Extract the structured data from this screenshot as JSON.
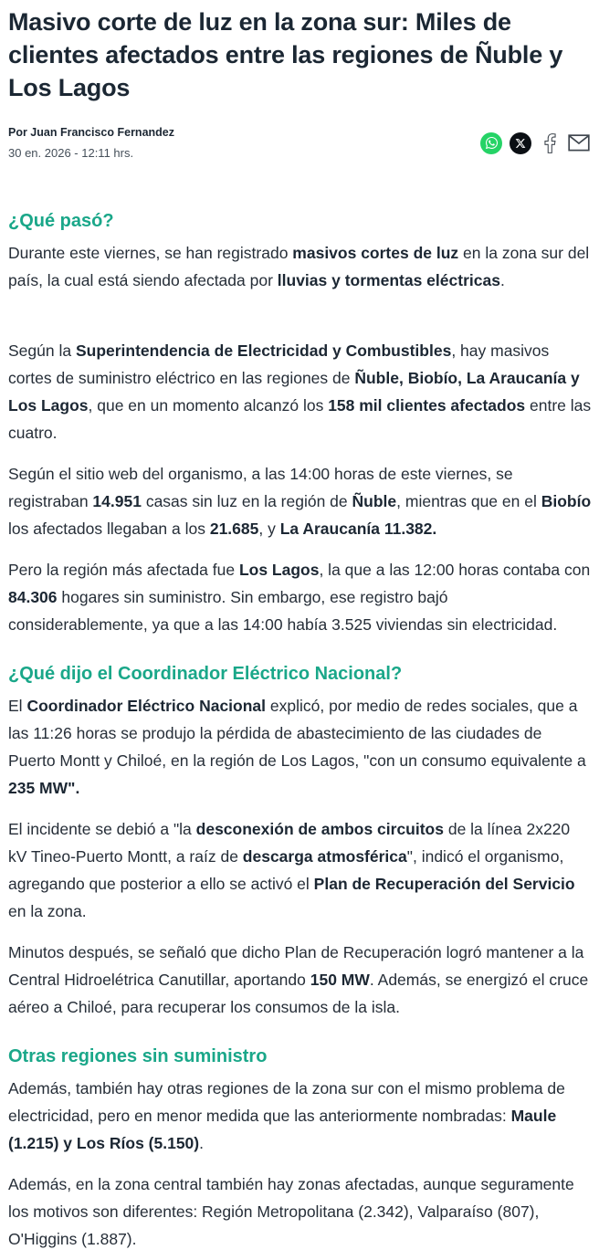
{
  "colors": {
    "accent": "#1aa789",
    "headline": "#1b2733",
    "body_text": "#262e38",
    "whatsapp_green": "#25D366",
    "x_black": "#0b0f14",
    "icon_outline": "#3f464e"
  },
  "article": {
    "title": "Masivo corte de luz en la zona sur: Miles de clientes afectados entre las regiones de Ñuble y Los Lagos",
    "byline": {
      "author": "Por Juan Francisco Fernandez",
      "date": "30 en. 2026 - 12:11 hrs."
    },
    "share": [
      {
        "id": "whatsapp",
        "icon": "whatsapp-icon"
      },
      {
        "id": "x",
        "icon": "x-icon"
      },
      {
        "id": "facebook",
        "icon": "facebook-icon"
      },
      {
        "id": "email",
        "icon": "email-icon"
      }
    ],
    "sections": [
      {
        "heading": "¿Qué pasó?",
        "paragraphs": [
          {
            "spacer_after": true,
            "segments": [
              {
                "text": "Durante este viernes, se han registrado "
              },
              {
                "text": "masivos cortes de luz",
                "bold": true
              },
              {
                "text": " en la zona sur del país, la cual está siendo afectada por "
              },
              {
                "text": "lluvias y tormentas eléctricas",
                "bold": true
              },
              {
                "text": "."
              }
            ]
          },
          {
            "segments": [
              {
                "text": "Según la "
              },
              {
                "text": "Superintendencia de Electricidad y Combustibles",
                "bold": true
              },
              {
                "text": ", hay masivos cortes de suministro eléctrico en las regiones de "
              },
              {
                "text": "Ñuble, Biobío, La Araucanía y Los Lagos",
                "bold": true
              },
              {
                "text": ", que en un momento alcanzó los "
              },
              {
                "text": "158 mil clientes afectados",
                "bold": true
              },
              {
                "text": " entre las cuatro."
              }
            ]
          },
          {
            "segments": [
              {
                "text": "Según el sitio web del organismo, a las 14:00 horas de este viernes, se registraban "
              },
              {
                "text": "14.951",
                "bold": true
              },
              {
                "text": " casas sin luz en la región de "
              },
              {
                "text": "Ñuble",
                "bold": true
              },
              {
                "text": ", mientras que en el "
              },
              {
                "text": "Biobío",
                "bold": true
              },
              {
                "text": " los afectados llegaban a los "
              },
              {
                "text": "21.685",
                "bold": true
              },
              {
                "text": ", y "
              },
              {
                "text": "La Araucanía 11.382.",
                "bold": true
              }
            ]
          },
          {
            "segments": [
              {
                "text": "Pero la región más afectada fue "
              },
              {
                "text": "Los Lagos",
                "bold": true
              },
              {
                "text": ", la que a las 12:00 horas contaba con "
              },
              {
                "text": "84.306",
                "bold": true
              },
              {
                "text": " hogares sin suministro. Sin embargo, ese registro bajó considerablemente, ya que a las 14:00 había 3.525 viviendas sin electricidad."
              }
            ]
          }
        ]
      },
      {
        "heading": "¿Qué dijo el Coordinador Eléctrico Nacional?",
        "paragraphs": [
          {
            "segments": [
              {
                "text": "El "
              },
              {
                "text": "Coordinador Eléctrico Nacional",
                "bold": true
              },
              {
                "text": " explicó, por medio de redes sociales, que a las 11:26 horas se produjo la pérdida de abastecimiento de las ciudades de Puerto Montt y Chiloé, en la región de Los Lagos, \"con un consumo equivalente a "
              },
              {
                "text": "235 MW\".",
                "bold": true
              }
            ]
          },
          {
            "segments": [
              {
                "text": "El incidente se debió a \"la "
              },
              {
                "text": "desconexión de ambos circuitos",
                "bold": true
              },
              {
                "text": " de la línea 2x220 kV Tineo-Puerto Montt, a raíz de "
              },
              {
                "text": "descarga atmosférica",
                "bold": true
              },
              {
                "text": "\", indicó el organismo, agregando que posterior a ello se activó el "
              },
              {
                "text": "Plan de Recuperación del Servicio",
                "bold": true
              },
              {
                "text": " en la zona."
              }
            ]
          },
          {
            "segments": [
              {
                "text": "Minutos después, se señaló que dicho Plan de Recuperación logró mantener a la Central Hidroelétrica Canutillar, aportando "
              },
              {
                "text": "150 MW",
                "bold": true
              },
              {
                "text": ". Además, se energizó el cruce aéreo a Chiloé, para recuperar los consumos de la isla."
              }
            ]
          }
        ]
      },
      {
        "heading": "Otras regiones sin suministro",
        "paragraphs": [
          {
            "segments": [
              {
                "text": "Además, también hay otras regiones de la zona sur con el mismo problema de electricidad, pero en menor medida que las anteriormente nombradas: "
              },
              {
                "text": "Maule (1.215) y Los Ríos (5.150)",
                "bold": true
              },
              {
                "text": "."
              }
            ]
          },
          {
            "segments": [
              {
                "text": "Además, en la zona central también hay zonas afectadas, aunque seguramente los motivos son diferentes: Región Metropolitana (2.342), Valparaíso (807), O'Higgins (1.887)."
              }
            ]
          }
        ]
      }
    ]
  }
}
